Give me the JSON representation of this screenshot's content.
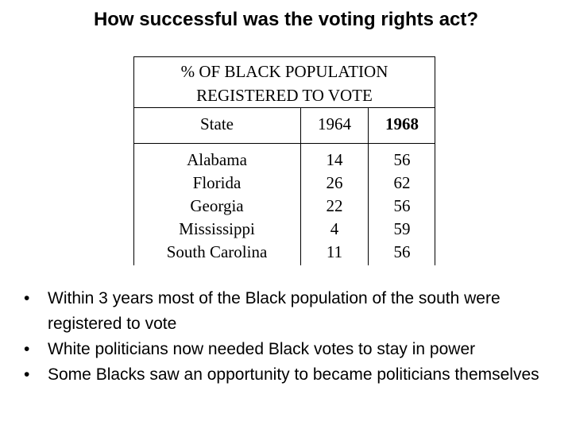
{
  "title": "How successful was the voting rights act?",
  "table": {
    "heading_line1": "% OF BLACK POPULATION",
    "heading_line2": "REGISTERED TO VOTE",
    "columns": [
      "State",
      "1964",
      "1968"
    ],
    "rows": [
      {
        "state": "Alabama",
        "y1964": "14",
        "y1968": "56"
      },
      {
        "state": "Florida",
        "y1964": "26",
        "y1968": "62"
      },
      {
        "state": "Georgia",
        "y1964": "22",
        "y1968": "56"
      },
      {
        "state": "Mississippi",
        "y1964": "4",
        "y1968": "59"
      },
      {
        "state": "South Carolina",
        "y1964": "11",
        "y1968": "56"
      }
    ]
  },
  "bullet_marker": "•",
  "bullets": [
    "Within 3 years most of the Black population of the south were registered to vote",
    "White politicians now needed Black votes to stay in power",
    "Some Blacks saw an opportunity to became politicians themselves"
  ]
}
